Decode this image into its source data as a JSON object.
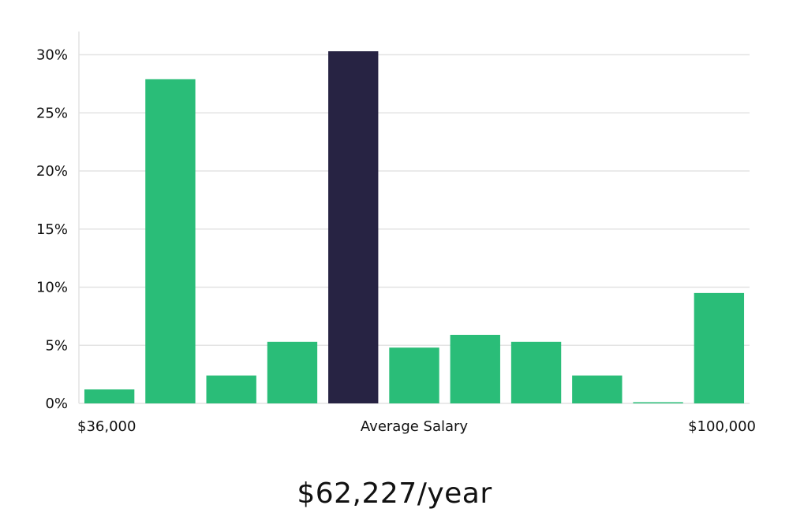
{
  "chart_data": {
    "type": "bar",
    "title": "",
    "xlabel": "Average Salary",
    "ylabel": "",
    "x_range_labels": [
      "$36,000",
      "$100,000"
    ],
    "ylim": [
      0,
      32
    ],
    "yticks": [
      0,
      5,
      10,
      15,
      20,
      25,
      30
    ],
    "ytick_labels": [
      "0%",
      "5%",
      "10%",
      "15%",
      "20%",
      "25%",
      "30%"
    ],
    "grid": true,
    "legend": "none",
    "values": [
      1.2,
      27.9,
      2.4,
      5.3,
      30.3,
      4.8,
      5.9,
      5.3,
      2.4,
      0.1,
      9.5
    ],
    "highlight_index": 4,
    "colors": {
      "bar": "#2abd78",
      "highlight": "#272343",
      "grid": "#e3e3e3",
      "axis": "#e3e3e3"
    }
  },
  "headline": "$62,227/year"
}
